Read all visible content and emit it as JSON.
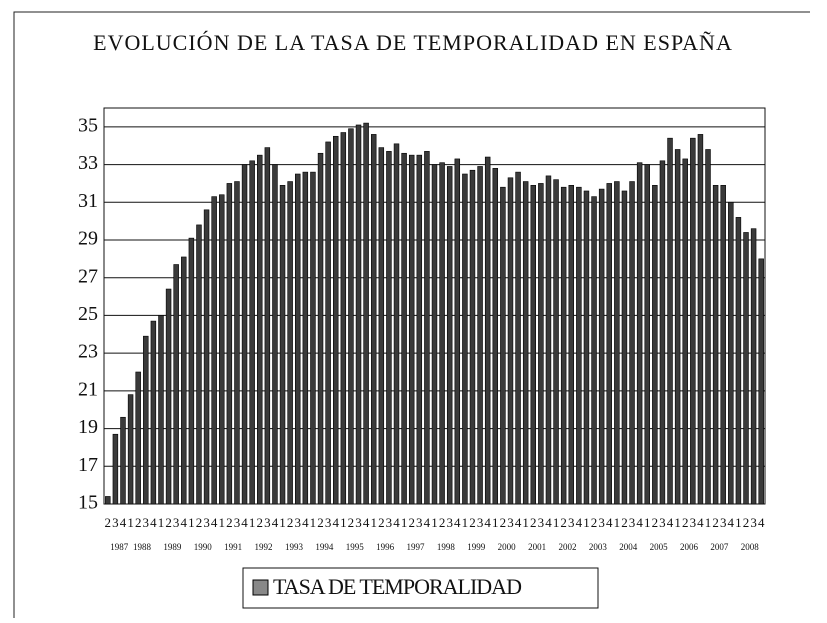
{
  "chart_data": {
    "type": "bar",
    "title": "EVOLUCIÓN DE LA TASA DE TEMPORALIDAD EN ESPAÑA",
    "categories": [
      "2",
      "3",
      "4",
      "1",
      "2",
      "3",
      "4",
      "1",
      "2",
      "3",
      "4",
      "1",
      "2",
      "3",
      "4",
      "1",
      "2",
      "3",
      "4",
      "1",
      "2",
      "3",
      "4",
      "1",
      "2",
      "3",
      "4",
      "1",
      "2",
      "3",
      "4",
      "1",
      "2",
      "3",
      "4",
      "1",
      "2",
      "3",
      "4",
      "1",
      "2",
      "3",
      "4",
      "1",
      "2",
      "3",
      "4",
      "1",
      "2",
      "3",
      "4",
      "1",
      "2",
      "3",
      "4",
      "1",
      "2",
      "3",
      "4",
      "1",
      "2",
      "3",
      "4",
      "1",
      "2",
      "3",
      "4",
      "1",
      "2",
      "3",
      "4",
      "1",
      "2",
      "3",
      "4",
      "1",
      "2",
      "3",
      "4",
      "1",
      "2",
      "3",
      "4",
      "1",
      "2",
      "3",
      "4"
    ],
    "year_labels": [
      "1987",
      null,
      null,
      "1988",
      null,
      null,
      null,
      "1989",
      null,
      null,
      null,
      "1990",
      null,
      null,
      null,
      "1991",
      null,
      null,
      null,
      "1992",
      null,
      null,
      null,
      "1993",
      null,
      null,
      null,
      "1994",
      null,
      null,
      null,
      "1995",
      null,
      null,
      null,
      "1996",
      null,
      null,
      null,
      "1997",
      null,
      null,
      null,
      "1998",
      null,
      null,
      null,
      "1999",
      null,
      null,
      null,
      "2000",
      null,
      null,
      null,
      "2001",
      null,
      null,
      null,
      "2002",
      null,
      null,
      null,
      "2003",
      null,
      null,
      null,
      "2004",
      null,
      null,
      null,
      "2005",
      null,
      null,
      null,
      "2006",
      null,
      null,
      null,
      "2007",
      null,
      null,
      null,
      "2008",
      null,
      null,
      null
    ],
    "series": [
      {
        "name": "TASA DE TEMPORALIDAD",
        "color": "#3a3a3a",
        "values": [
          15.4,
          18.7,
          19.6,
          20.8,
          22.0,
          23.9,
          24.7,
          25.0,
          26.4,
          27.7,
          28.1,
          29.1,
          29.8,
          30.6,
          31.3,
          31.4,
          32.0,
          32.1,
          33.0,
          33.2,
          33.5,
          33.9,
          33.0,
          31.9,
          32.1,
          32.5,
          32.6,
          32.6,
          33.6,
          34.2,
          34.5,
          34.7,
          34.9,
          35.1,
          35.2,
          34.6,
          33.9,
          33.7,
          34.1,
          33.6,
          33.5,
          33.5,
          33.7,
          33.0,
          33.1,
          32.9,
          33.3,
          32.5,
          32.7,
          32.9,
          33.4,
          32.8,
          31.8,
          32.3,
          32.6,
          32.1,
          31.9,
          32.0,
          32.4,
          32.2,
          31.8,
          31.9,
          31.8,
          31.6,
          31.3,
          31.7,
          32.0,
          32.1,
          31.6,
          32.1,
          33.1,
          33.0,
          31.9,
          33.2,
          34.4,
          33.8,
          33.3,
          34.4,
          34.6,
          33.8,
          31.9,
          31.9,
          31.0,
          30.2,
          29.4,
          29.6,
          28.0
        ]
      }
    ],
    "ylim": [
      15,
      36
    ],
    "yticks": [
      15,
      17,
      19,
      21,
      23,
      25,
      27,
      29,
      31,
      33,
      35
    ],
    "grid": true
  }
}
